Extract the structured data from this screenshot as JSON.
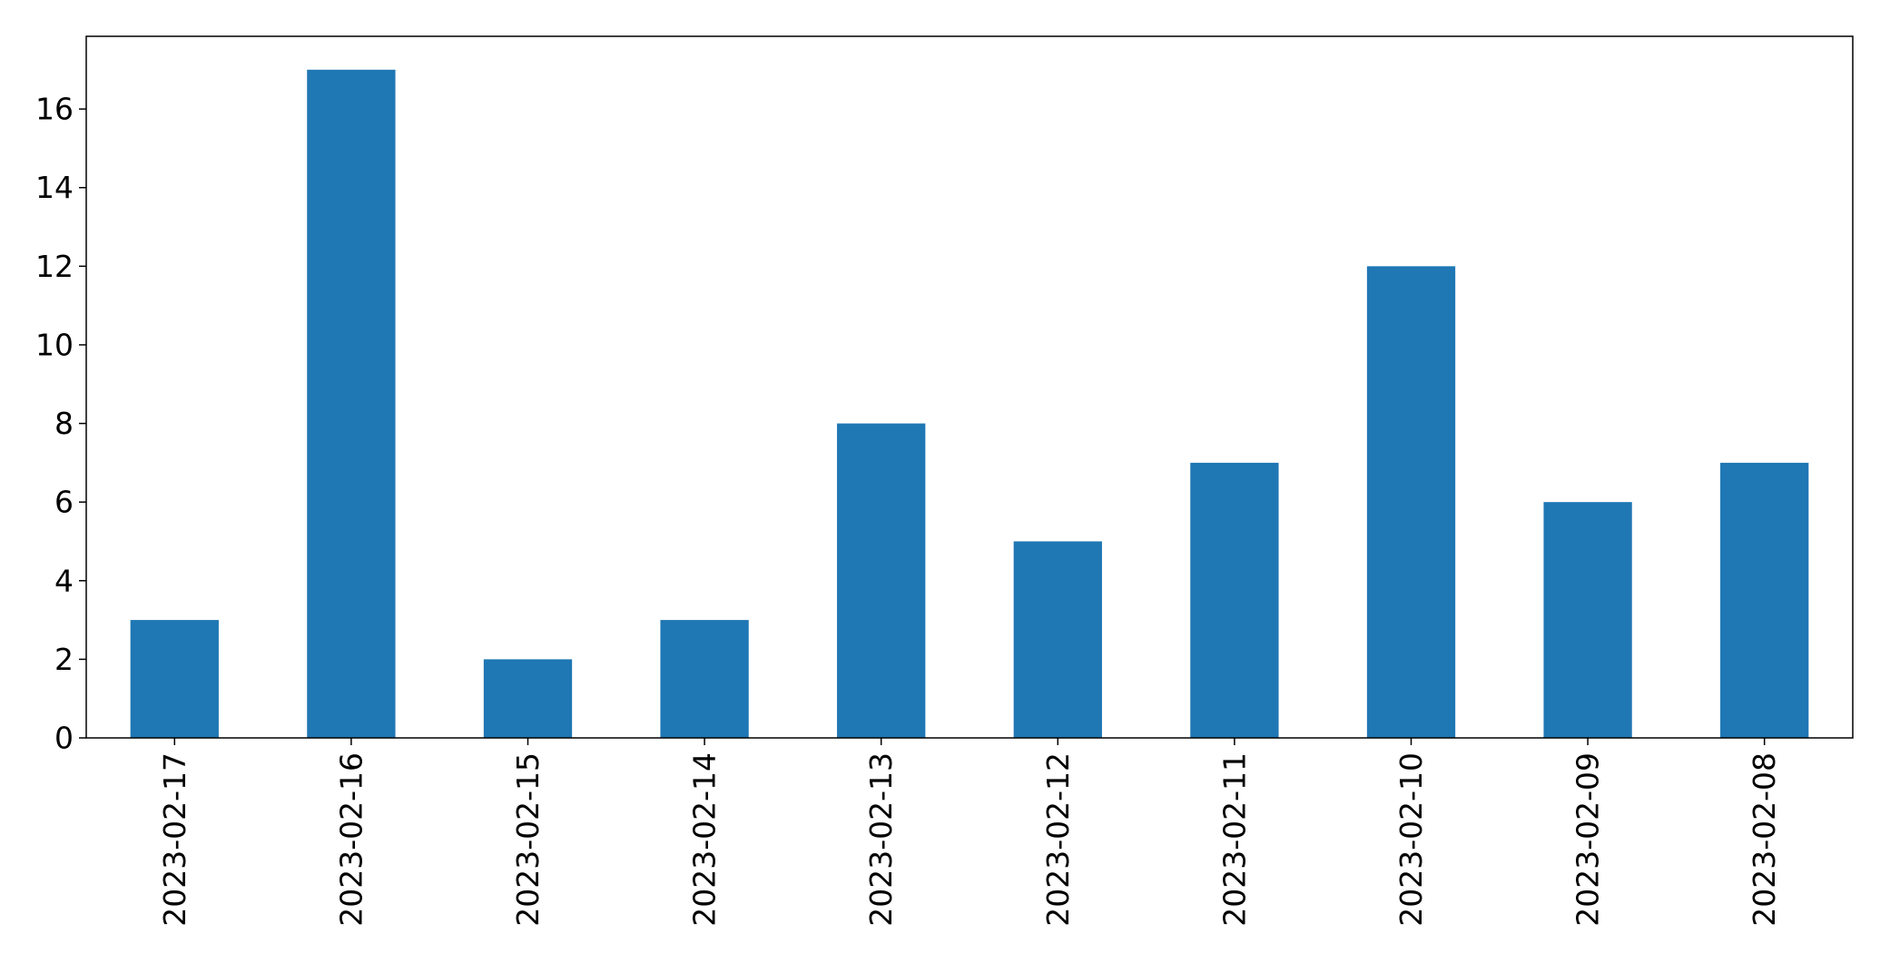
{
  "chart_data": {
    "type": "bar",
    "categories": [
      "2023-02-17",
      "2023-02-16",
      "2023-02-15",
      "2023-02-14",
      "2023-02-13",
      "2023-02-12",
      "2023-02-11",
      "2023-02-10",
      "2023-02-09",
      "2023-02-08"
    ],
    "values": [
      3,
      17,
      2,
      3,
      8,
      5,
      7,
      12,
      6,
      7
    ],
    "yticks": [
      "0",
      "2",
      "4",
      "6",
      "8",
      "10",
      "12",
      "14",
      "16"
    ],
    "title": "",
    "xlabel": "",
    "ylabel": "",
    "ylim": [
      0,
      17.85
    ],
    "grid": false,
    "legend": "none",
    "colors": {
      "bar": "#1f77b4",
      "axis": "#000000",
      "background": "#ffffff"
    }
  }
}
